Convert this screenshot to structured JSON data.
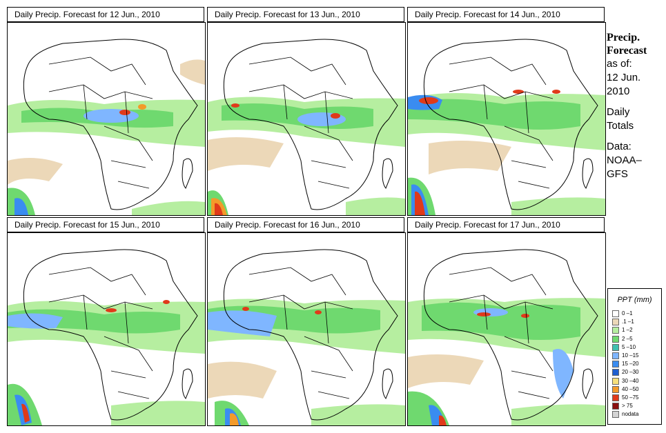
{
  "panels": [
    {
      "title": "Daily Precip. Forecast for  12 Jun., 2010"
    },
    {
      "title": "Daily Precip. Forecast for  13 Jun., 2010"
    },
    {
      "title": "Daily Precip. Forecast for  14 Jun., 2010"
    },
    {
      "title": "Daily Precip. Forecast for  15 Jun., 2010"
    },
    {
      "title": "Daily Precip. Forecast for  16 Jun., 2010"
    },
    {
      "title": "Daily Precip. Forecast for  17 Jun., 2010"
    }
  ],
  "sidebar": {
    "title_line1": "Precip.",
    "title_line2": "Forecast",
    "asof_line1": "as of:",
    "asof_line2": "12 Jun.",
    "asof_line3": "2010",
    "totals_line1": "Daily",
    "totals_line2": "Totals",
    "data_line1": "Data:",
    "data_line2": "NOAA–",
    "data_line3": "GFS"
  },
  "legend": {
    "title": "PPT (mm)",
    "items": [
      {
        "label": "0 –1",
        "color": "#ffffff"
      },
      {
        "label": ".1 –1",
        "color": "#ecd8b8"
      },
      {
        "label": "1 –2",
        "color": "#b6eea0"
      },
      {
        "label": "2 –5",
        "color": "#6fd96f"
      },
      {
        "label": "5 –10",
        "color": "#40c0b0"
      },
      {
        "label": "10 –15",
        "color": "#7fb6ff"
      },
      {
        "label": "15 –20",
        "color": "#3a8cf0"
      },
      {
        "label": "20 –30",
        "color": "#1f5fd0"
      },
      {
        "label": "30 –40",
        "color": "#f6e07a"
      },
      {
        "label": "40 –50",
        "color": "#f39a2a"
      },
      {
        "label": "50 –75",
        "color": "#e03a1a"
      },
      {
        "label": "> 75",
        "color": "#8a1010"
      },
      {
        "label": "nodata",
        "color": "#d4d4d4"
      }
    ]
  }
}
